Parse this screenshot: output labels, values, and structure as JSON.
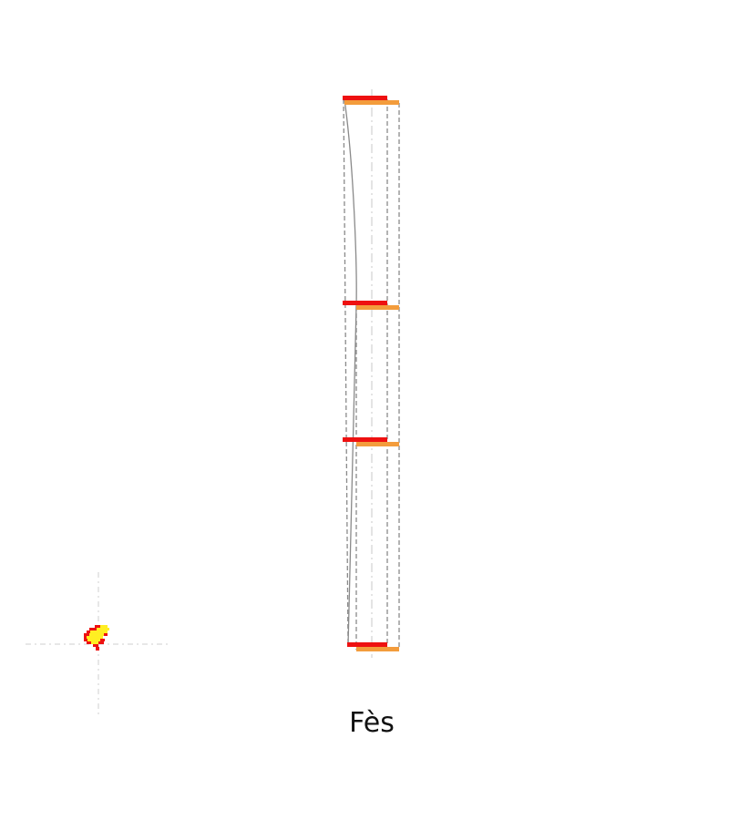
{
  "caption": "Fès",
  "colors": {
    "red": "#ee1111",
    "orange": "#f39c3c",
    "frame": "#8a8a8a",
    "axis": "#c8c8c8",
    "yellow": "#ffee22",
    "background": "#ffffff"
  },
  "diagram": {
    "level_count": 4,
    "marker_icon": "yellow-red-pixel-cluster"
  }
}
